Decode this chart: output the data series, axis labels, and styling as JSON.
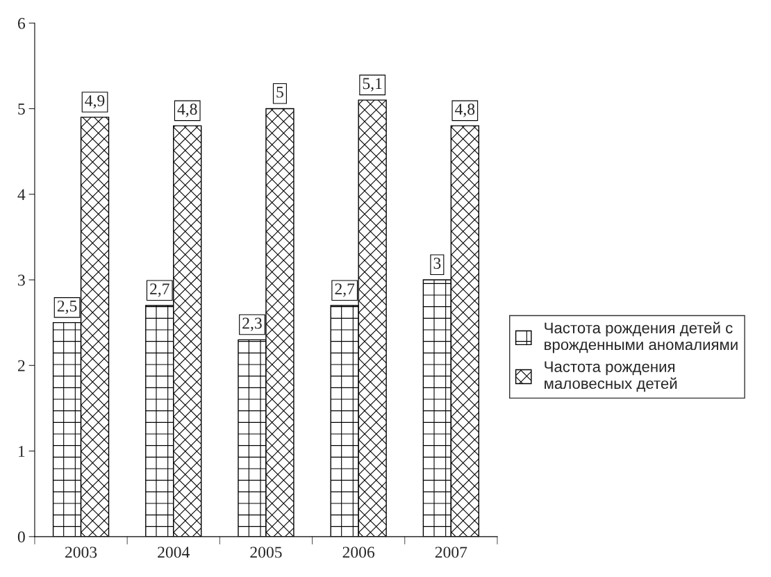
{
  "chart_data": {
    "type": "bar",
    "categories": [
      "2003",
      "2004",
      "2005",
      "2006",
      "2007"
    ],
    "series": [
      {
        "name": "Частота рождения детей с врожденными аномалиями",
        "color": "#000000",
        "values": [
          2.5,
          2.7,
          2.3,
          2.7,
          3
        ],
        "value_labels": [
          "2,5",
          "2,7",
          "2,3",
          "2,7",
          "3"
        ]
      },
      {
        "name": "Частота рождения маловесных детей",
        "color": "#000000",
        "values": [
          4.9,
          4.8,
          5,
          5.1,
          4.8
        ],
        "value_labels": [
          "4,9",
          "4,8",
          "5",
          "5,1",
          "4,8"
        ]
      }
    ],
    "ylim": [
      0,
      6
    ],
    "yticks": [
      0,
      1,
      2,
      3,
      4,
      5,
      6
    ],
    "grid": false,
    "legend": "right"
  }
}
